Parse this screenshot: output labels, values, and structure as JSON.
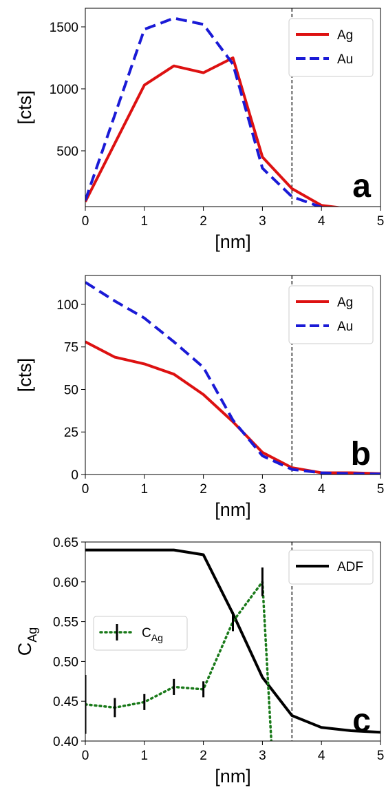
{
  "chart_data": [
    {
      "type": "line",
      "panel_label": "a",
      "xlabel": "[nm]",
      "ylabel": "[cts]",
      "xlim": [
        0,
        5
      ],
      "ylim": [
        50,
        1650
      ],
      "xticks": [
        0,
        1,
        2,
        3,
        4,
        5
      ],
      "yticks": [
        500,
        1000,
        1500
      ],
      "xtick_labels": [
        "0",
        "1",
        "2",
        "3",
        "4",
        "5"
      ],
      "ytick_labels": [
        "500",
        "1000",
        "1500"
      ],
      "vline": 3.5,
      "legend": "top-right",
      "series": [
        {
          "name": "Ag",
          "color": "#dd1111",
          "style": "solid",
          "x": [
            0,
            1,
            1.5,
            2,
            2.5,
            3,
            3.5,
            4,
            4.5,
            5
          ],
          "y": [
            90,
            1030,
            1185,
            1130,
            1250,
            450,
            195,
            60,
            30,
            20
          ]
        },
        {
          "name": "Au",
          "color": "#1a1ad6",
          "style": "dashed",
          "x": [
            0,
            1,
            1.5,
            2,
            2.5,
            3,
            3.5,
            4,
            4.5,
            5
          ],
          "y": [
            100,
            1480,
            1570,
            1520,
            1200,
            360,
            130,
            45,
            25,
            15
          ]
        }
      ]
    },
    {
      "type": "line",
      "panel_label": "b",
      "xlabel": "[nm]",
      "ylabel": "[cts]",
      "xlim": [
        0,
        5
      ],
      "ylim": [
        0,
        117
      ],
      "xticks": [
        0,
        1,
        2,
        3,
        4,
        5
      ],
      "yticks": [
        0,
        25,
        50,
        75,
        100
      ],
      "xtick_labels": [
        "0",
        "1",
        "2",
        "3",
        "4",
        "5"
      ],
      "ytick_labels": [
        "0",
        "25",
        "50",
        "75",
        "100"
      ],
      "vline": 3.5,
      "legend": "top-right",
      "series": [
        {
          "name": "Ag",
          "color": "#dd1111",
          "style": "solid",
          "x": [
            0,
            0.5,
            1,
            1.5,
            2,
            2.5,
            3,
            3.5,
            4,
            4.5,
            5
          ],
          "y": [
            78,
            69,
            65,
            59,
            47,
            31,
            13,
            4,
            1,
            1,
            0.5
          ]
        },
        {
          "name": "Au",
          "color": "#1a1ad6",
          "style": "dashed",
          "x": [
            0,
            0.5,
            1,
            1.5,
            2,
            2.5,
            3,
            3.5,
            4,
            4.5,
            5
          ],
          "y": [
            113,
            102,
            92,
            78,
            63,
            32,
            11,
            3,
            1,
            0.5,
            0.3
          ]
        }
      ]
    },
    {
      "type": "line",
      "panel_label": "c",
      "xlabel": "[nm]",
      "ylabel": "C_Ag",
      "ylabel_main": "C",
      "ylabel_sub": "Ag",
      "xlim": [
        0,
        5
      ],
      "ylim": [
        0.4,
        0.65
      ],
      "xticks": [
        0,
        1,
        2,
        3,
        4,
        5
      ],
      "yticks": [
        0.4,
        0.45,
        0.5,
        0.55,
        0.6,
        0.65
      ],
      "xtick_labels": [
        "0",
        "1",
        "2",
        "3",
        "4",
        "5"
      ],
      "ytick_labels": [
        "0.40",
        "0.45",
        "0.50",
        "0.55",
        "0.60",
        "0.65"
      ],
      "vline": 3.5,
      "legend_adf": "top-right",
      "legend_cag": "center-left",
      "series": [
        {
          "name": "ADF",
          "color": "#000000",
          "style": "solid",
          "x": [
            0,
            0.5,
            1,
            1.5,
            2,
            2.5,
            3,
            3.5,
            4,
            4.5,
            5
          ],
          "y": [
            0.64,
            0.64,
            0.64,
            0.64,
            0.634,
            0.56,
            0.48,
            0.432,
            0.417,
            0.413,
            0.411
          ]
        },
        {
          "name": "C_Ag",
          "label_main": "C",
          "label_sub": "Ag",
          "color": "#1a7a1a",
          "style": "dotted",
          "x": [
            0,
            0.5,
            1,
            1.5,
            2,
            2.5,
            3,
            3.15
          ],
          "y": [
            0.446,
            0.442,
            0.449,
            0.468,
            0.465,
            0.55,
            0.6,
            0.4
          ],
          "err": [
            0.037,
            0.012,
            0.01,
            0.01,
            0.01,
            0.012,
            0.018,
            0
          ]
        }
      ]
    }
  ]
}
